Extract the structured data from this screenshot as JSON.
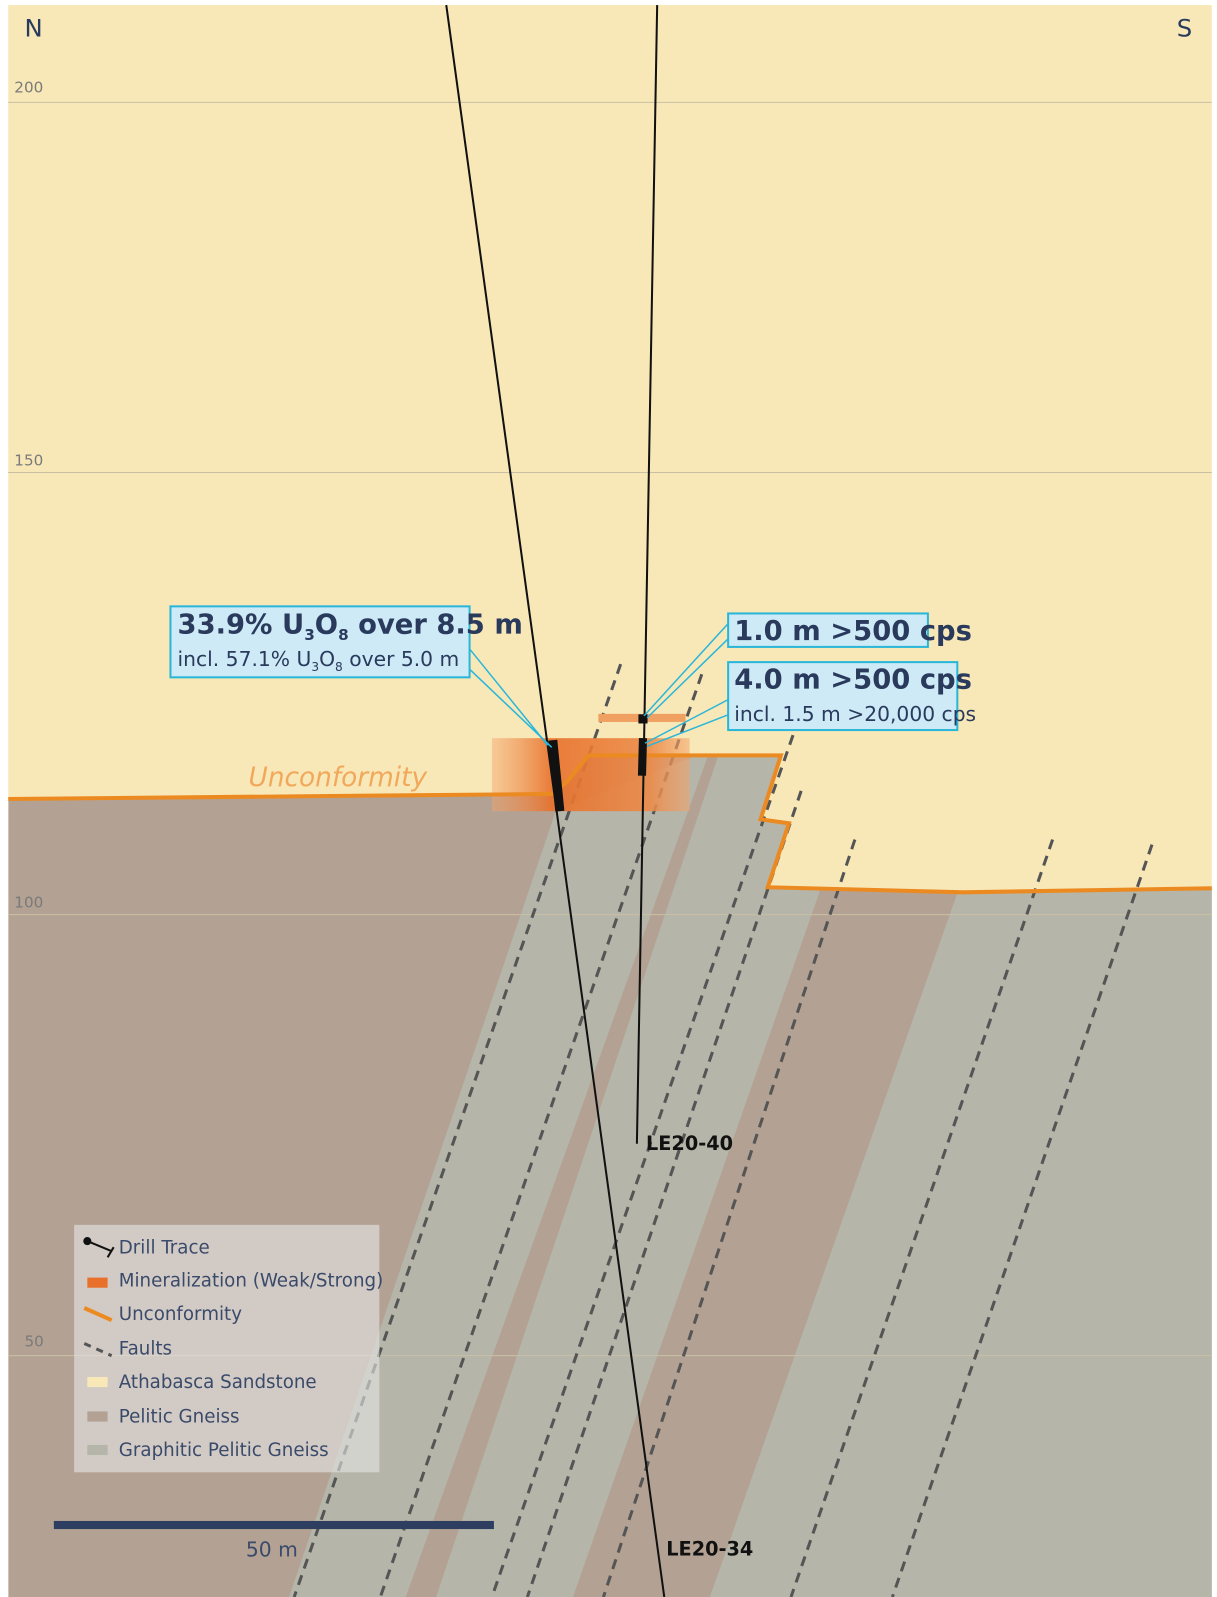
{
  "header": {
    "north": "N",
    "south": "S"
  },
  "elevations": [
    "200",
    "150",
    "100",
    "50"
  ],
  "callouts": [
    {
      "line1": {
        "pre": "33.9% U",
        "sub1": "3",
        "mid": "O",
        "sub2": "8",
        "post": " over 8.5 m"
      },
      "line2": {
        "pre": "incl. 57.1% U",
        "sub1": "3",
        "mid": "O",
        "sub2": "8",
        "post": " over 5.0 m"
      }
    },
    {
      "line1": "1.0 m >500 cps"
    },
    {
      "line1": "4.0 m >500 cps",
      "line2": "incl. 1.5 m >20,000 cps"
    }
  ],
  "drill_holes": [
    "LE20-40",
    "LE20-34"
  ],
  "unconformity_label": "Unconformity",
  "legend": [
    "Drill Trace",
    "Mineralization (Weak/Strong)",
    "Unconformity",
    "Faults",
    "Athabasca Sandstone",
    "Pelitic Gneiss",
    "Graphitic Pelitic Gneiss"
  ],
  "scale_bar": "50 m"
}
